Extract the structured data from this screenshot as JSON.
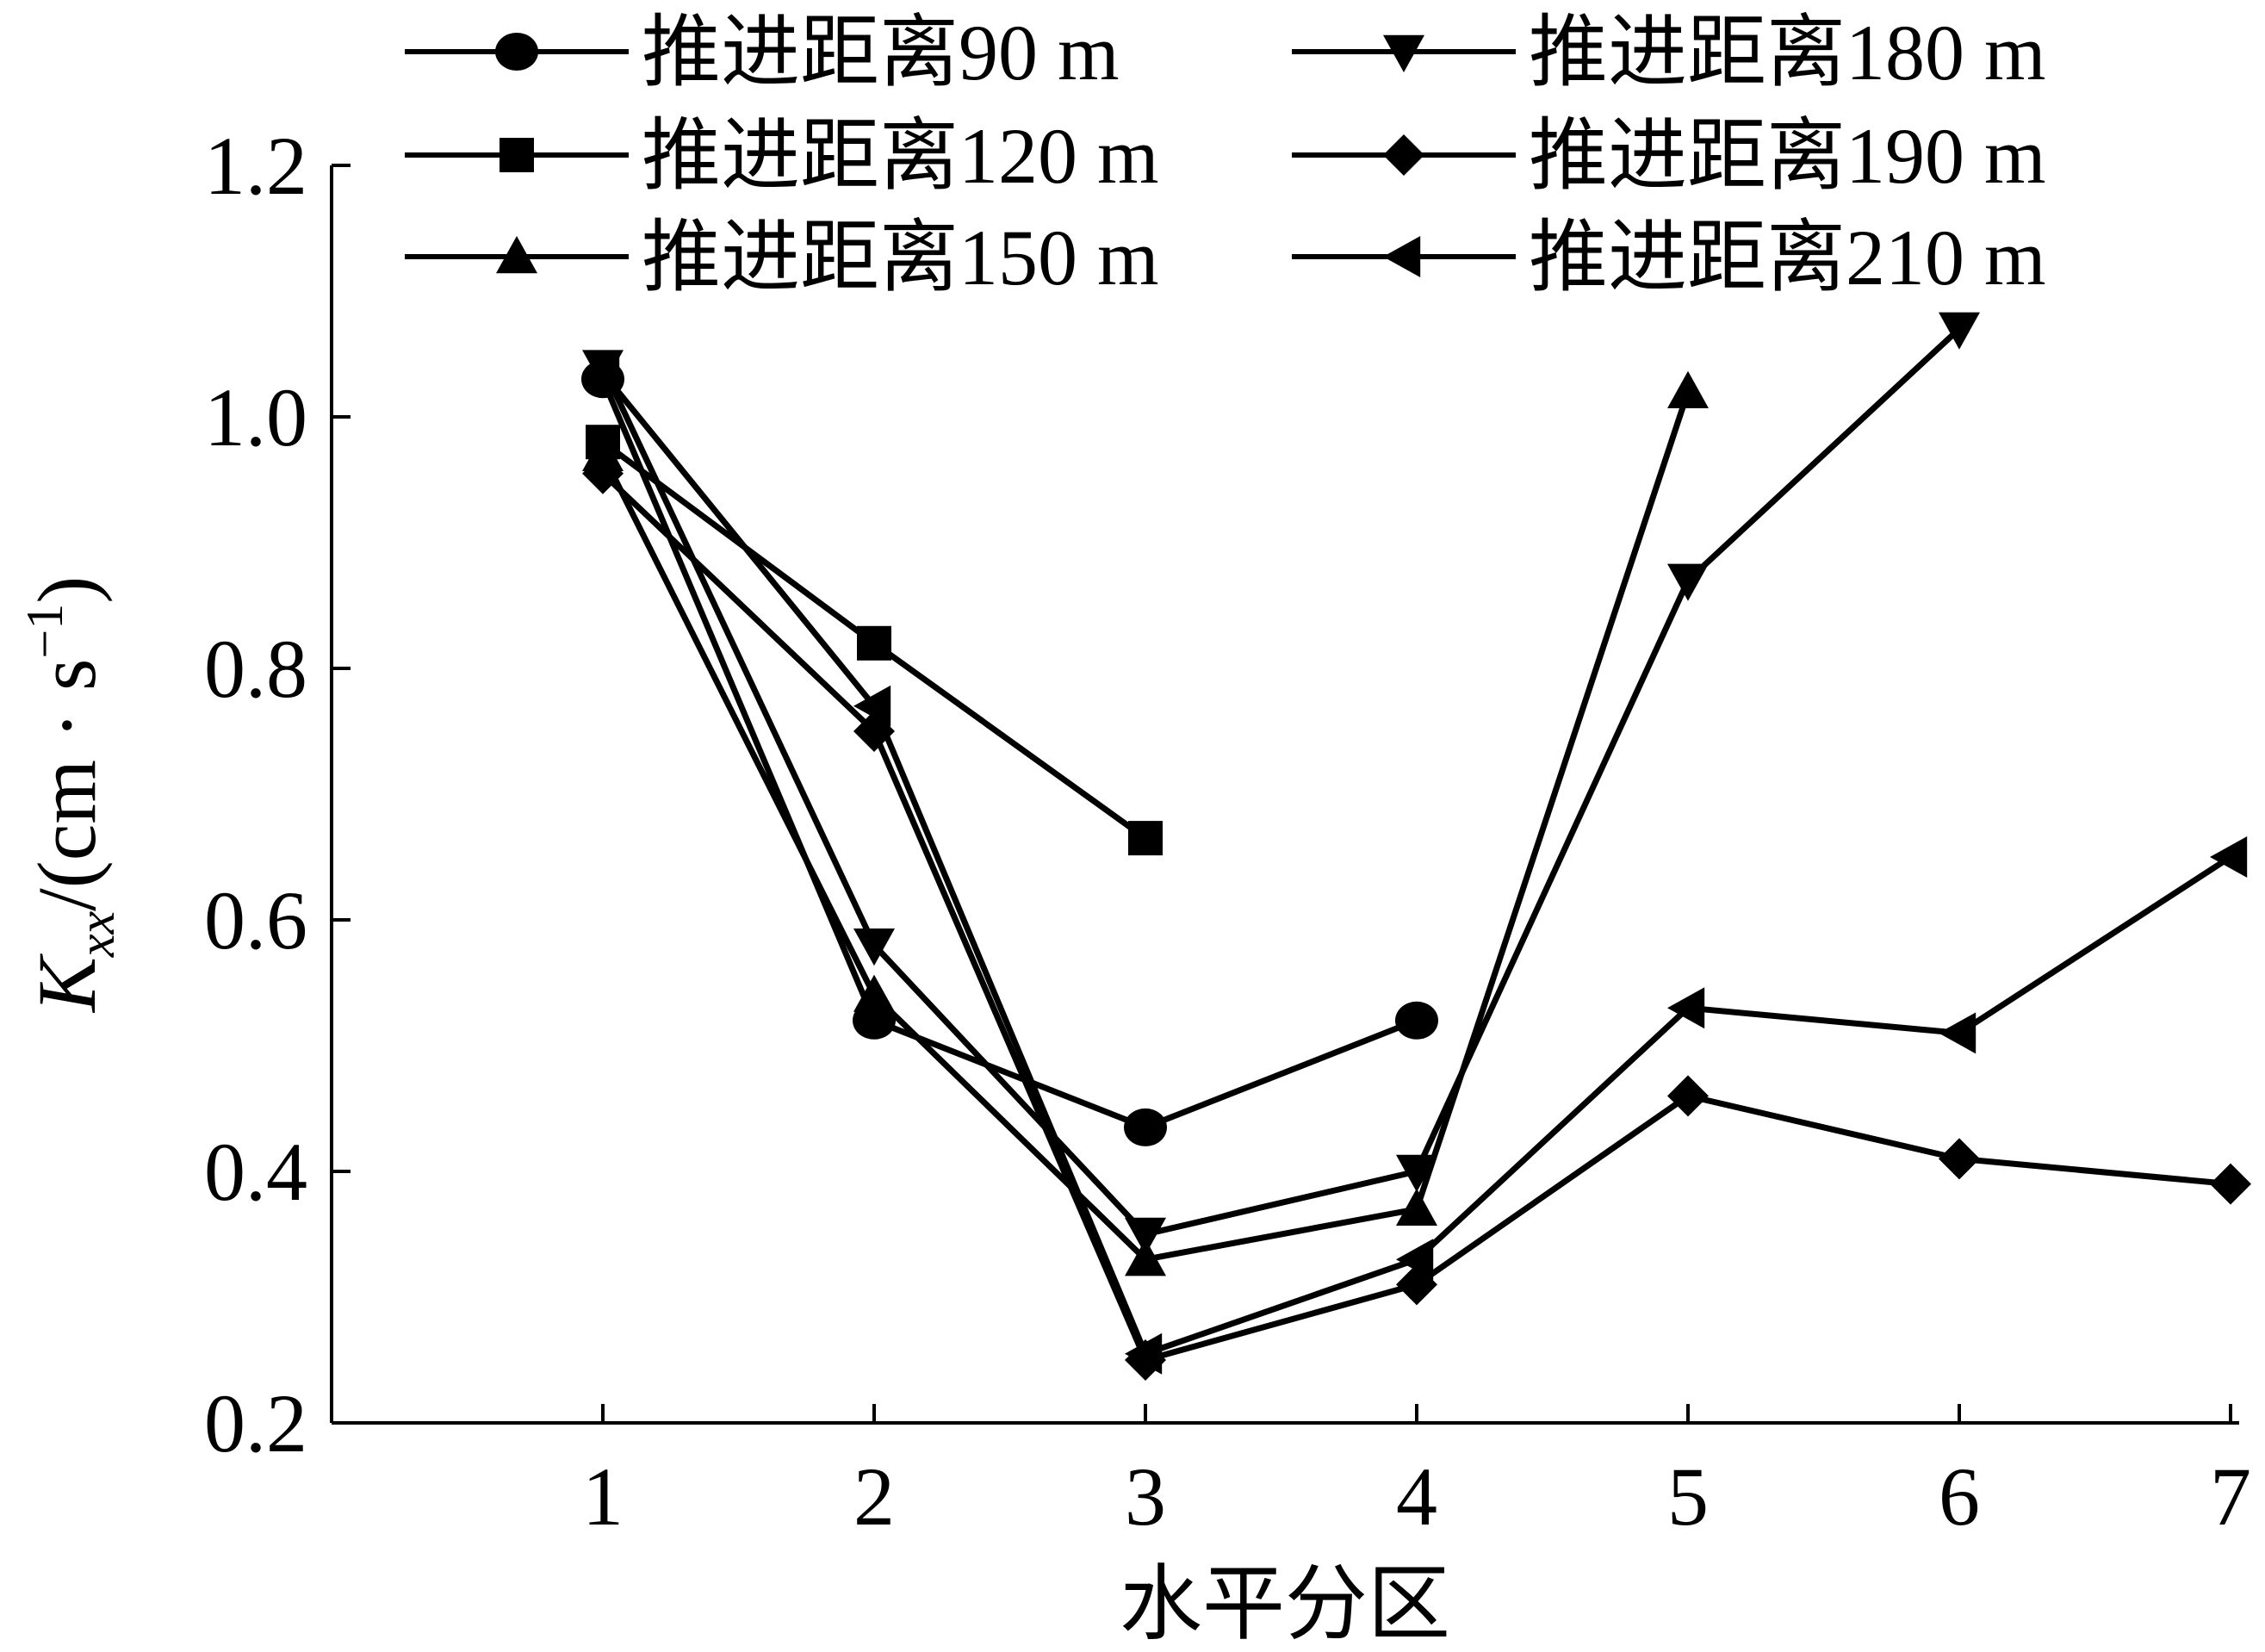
{
  "chart_data": {
    "type": "line",
    "title": "",
    "xlabel": "水平分区",
    "ylabel": {
      "symbol": "K",
      "subscript": "xx",
      "separator": "/",
      "unit": "(cm · s",
      "unit_exponent": "−1",
      "unit_close": ")"
    },
    "x": [
      1,
      2,
      3,
      4,
      5,
      6,
      7
    ],
    "x_ticks": [
      "1",
      "2",
      "3",
      "4",
      "5",
      "6",
      "7"
    ],
    "xlim": [
      0,
      7
    ],
    "y_ticks": [
      "0.2",
      "0.4",
      "0.6",
      "0.8",
      "1.0",
      "1.2"
    ],
    "ylim": [
      0.2,
      1.2
    ],
    "grid": false,
    "legend_position": "top",
    "series": [
      {
        "name": "推进距离90 m",
        "marker": "circle",
        "x": [
          1,
          2,
          3,
          4
        ],
        "values": [
          1.03,
          0.52,
          0.435,
          0.52
        ]
      },
      {
        "name": "推进距离120 m",
        "marker": "square",
        "x": [
          1,
          2,
          3
        ],
        "values": [
          0.98,
          0.82,
          0.665
        ]
      },
      {
        "name": "推进距离150 m",
        "marker": "triangle-up",
        "x": [
          1,
          2,
          3,
          4,
          5
        ],
        "values": [
          0.97,
          0.54,
          0.33,
          0.37,
          1.02
        ]
      },
      {
        "name": "推进距离180 m",
        "marker": "triangle-down",
        "x": [
          1,
          2,
          3,
          4,
          5,
          6
        ],
        "values": [
          1.04,
          0.58,
          0.35,
          0.4,
          0.87,
          1.07
        ]
      },
      {
        "name": "推进距离190 m",
        "marker": "diamond",
        "x": [
          1,
          2,
          3,
          4,
          5,
          6,
          7
        ],
        "values": [
          0.955,
          0.75,
          0.25,
          0.31,
          0.46,
          0.41,
          0.39
        ]
      },
      {
        "name": "推进距离210 m",
        "marker": "triangle-left",
        "x": [
          1,
          2,
          3,
          4,
          5,
          6,
          7
        ],
        "values": [
          1.035,
          0.77,
          0.255,
          0.33,
          0.53,
          0.51,
          0.65
        ]
      }
    ]
  }
}
